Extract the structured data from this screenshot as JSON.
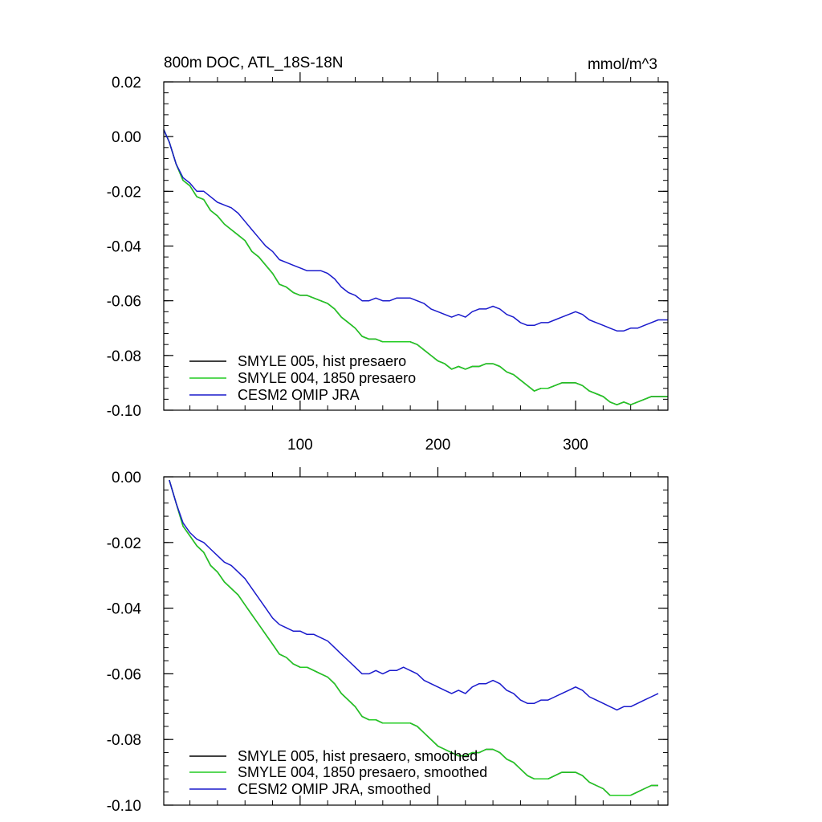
{
  "chart_data": [
    {
      "type": "line",
      "title": "800m DOC, ATL_18S-18N",
      "units": "mmol/m^3",
      "xlim": [
        1,
        367
      ],
      "ylim": [
        -0.1,
        0.02
      ],
      "yticks": [
        0.02,
        0.0,
        -0.02,
        -0.04,
        -0.06,
        -0.08,
        -0.1
      ],
      "ytick_labels": [
        "0.02",
        "0.00",
        "-0.02",
        "-0.04",
        "-0.06",
        "-0.08",
        "-0.10"
      ],
      "xticks": [
        100,
        200,
        300
      ],
      "xtick_labels": [
        "100",
        "200",
        "300"
      ],
      "series": [
        {
          "name": "SMYLE 005, hist presaero",
          "color": "#000000",
          "x": [
            1,
            5,
            10,
            15,
            20,
            25,
            30,
            35,
            40,
            45,
            50,
            55,
            60,
            65,
            70,
            75,
            80,
            85,
            90,
            95,
            100,
            105,
            110,
            115,
            120,
            125,
            130,
            135,
            140,
            145,
            150,
            155,
            160,
            165,
            170,
            175,
            180,
            185,
            190,
            195,
            200,
            205,
            210,
            215,
            220,
            225,
            230,
            235,
            240,
            245,
            250,
            255,
            260,
            265,
            270,
            275,
            280,
            285,
            290,
            295,
            300,
            305,
            310,
            315,
            320,
            325,
            330,
            335,
            340,
            345,
            350,
            355,
            360,
            367
          ],
          "y": [
            0.0025,
            -0.002,
            -0.01,
            -0.016,
            -0.018,
            -0.022,
            -0.023,
            -0.027,
            -0.029,
            -0.032,
            -0.034,
            -0.036,
            -0.038,
            -0.042,
            -0.044,
            -0.047,
            -0.05,
            -0.054,
            -0.055,
            -0.057,
            -0.058,
            -0.058,
            -0.059,
            -0.06,
            -0.061,
            -0.063,
            -0.066,
            -0.068,
            -0.07,
            -0.073,
            -0.074,
            -0.074,
            -0.075,
            -0.075,
            -0.075,
            -0.075,
            -0.075,
            -0.076,
            -0.078,
            -0.08,
            -0.082,
            -0.083,
            -0.085,
            -0.084,
            -0.085,
            -0.084,
            -0.084,
            -0.083,
            -0.083,
            -0.084,
            -0.086,
            -0.087,
            -0.089,
            -0.091,
            -0.093,
            -0.092,
            -0.092,
            -0.091,
            -0.09,
            -0.09,
            -0.09,
            -0.091,
            -0.093,
            -0.094,
            -0.095,
            -0.097,
            -0.098,
            -0.097,
            -0.098,
            -0.097,
            -0.096,
            -0.095,
            -0.095,
            -0.095
          ]
        },
        {
          "name": "SMYLE 004, 1850 presaero",
          "color": "#22cc22",
          "x": [
            1,
            5,
            10,
            15,
            20,
            25,
            30,
            35,
            40,
            45,
            50,
            55,
            60,
            65,
            70,
            75,
            80,
            85,
            90,
            95,
            100,
            105,
            110,
            115,
            120,
            125,
            130,
            135,
            140,
            145,
            150,
            155,
            160,
            165,
            170,
            175,
            180,
            185,
            190,
            195,
            200,
            205,
            210,
            215,
            220,
            225,
            230,
            235,
            240,
            245,
            250,
            255,
            260,
            265,
            270,
            275,
            280,
            285,
            290,
            295,
            300,
            305,
            310,
            315,
            320,
            325,
            330,
            335,
            340,
            345,
            350,
            355,
            360,
            367
          ],
          "y": [
            0.0025,
            -0.002,
            -0.01,
            -0.016,
            -0.018,
            -0.022,
            -0.023,
            -0.027,
            -0.029,
            -0.032,
            -0.034,
            -0.036,
            -0.038,
            -0.042,
            -0.044,
            -0.047,
            -0.05,
            -0.054,
            -0.055,
            -0.057,
            -0.058,
            -0.058,
            -0.059,
            -0.06,
            -0.061,
            -0.063,
            -0.066,
            -0.068,
            -0.07,
            -0.073,
            -0.074,
            -0.074,
            -0.075,
            -0.075,
            -0.075,
            -0.075,
            -0.075,
            -0.076,
            -0.078,
            -0.08,
            -0.082,
            -0.083,
            -0.085,
            -0.084,
            -0.085,
            -0.084,
            -0.084,
            -0.083,
            -0.083,
            -0.084,
            -0.086,
            -0.087,
            -0.089,
            -0.091,
            -0.093,
            -0.092,
            -0.092,
            -0.091,
            -0.09,
            -0.09,
            -0.09,
            -0.091,
            -0.093,
            -0.094,
            -0.095,
            -0.097,
            -0.098,
            -0.097,
            -0.098,
            -0.097,
            -0.096,
            -0.095,
            -0.095,
            -0.095
          ]
        },
        {
          "name": "CESM2 OMIP JRA",
          "color": "#1a1acc",
          "x": [
            1,
            5,
            10,
            15,
            20,
            25,
            30,
            35,
            40,
            45,
            50,
            55,
            60,
            65,
            70,
            75,
            80,
            85,
            90,
            95,
            100,
            105,
            110,
            115,
            120,
            125,
            130,
            135,
            140,
            145,
            150,
            155,
            160,
            165,
            170,
            175,
            180,
            185,
            190,
            195,
            200,
            205,
            210,
            215,
            220,
            225,
            230,
            235,
            240,
            245,
            250,
            255,
            260,
            265,
            270,
            275,
            280,
            285,
            290,
            295,
            300,
            305,
            310,
            315,
            320,
            325,
            330,
            335,
            340,
            345,
            350,
            355,
            360,
            367
          ],
          "y": [
            0.0025,
            -0.002,
            -0.01,
            -0.015,
            -0.017,
            -0.02,
            -0.02,
            -0.022,
            -0.024,
            -0.025,
            -0.026,
            -0.028,
            -0.031,
            -0.034,
            -0.037,
            -0.04,
            -0.042,
            -0.045,
            -0.046,
            -0.047,
            -0.048,
            -0.049,
            -0.049,
            -0.049,
            -0.05,
            -0.052,
            -0.055,
            -0.057,
            -0.058,
            -0.06,
            -0.06,
            -0.059,
            -0.06,
            -0.06,
            -0.059,
            -0.059,
            -0.059,
            -0.06,
            -0.061,
            -0.063,
            -0.064,
            -0.065,
            -0.066,
            -0.065,
            -0.066,
            -0.064,
            -0.063,
            -0.063,
            -0.062,
            -0.063,
            -0.065,
            -0.066,
            -0.068,
            -0.069,
            -0.069,
            -0.068,
            -0.068,
            -0.067,
            -0.066,
            -0.065,
            -0.064,
            -0.065,
            -0.067,
            -0.068,
            -0.069,
            -0.07,
            -0.071,
            -0.071,
            -0.07,
            -0.07,
            -0.069,
            -0.068,
            -0.067,
            -0.067
          ]
        }
      ]
    },
    {
      "type": "line",
      "title": "",
      "xlim": [
        1,
        367
      ],
      "ylim": [
        -0.1,
        0.0
      ],
      "yticks": [
        0.0,
        -0.02,
        -0.04,
        -0.06,
        -0.08,
        -0.1
      ],
      "ytick_labels": [
        "0.00",
        "-0.02",
        "-0.04",
        "-0.06",
        "-0.08",
        "-0.10"
      ],
      "xticks": [
        100,
        200,
        300
      ],
      "series": [
        {
          "name": "SMYLE 005, hist presaero, smoothed",
          "color": "#000000",
          "x": [
            5,
            10,
            15,
            20,
            25,
            30,
            35,
            40,
            45,
            50,
            55,
            60,
            65,
            70,
            75,
            80,
            85,
            90,
            95,
            100,
            105,
            110,
            115,
            120,
            125,
            130,
            135,
            140,
            145,
            150,
            155,
            160,
            165,
            170,
            175,
            180,
            185,
            190,
            195,
            200,
            205,
            210,
            215,
            220,
            225,
            230,
            235,
            240,
            245,
            250,
            255,
            260,
            265,
            270,
            275,
            280,
            285,
            290,
            295,
            300,
            305,
            310,
            315,
            320,
            325,
            330,
            335,
            340,
            345,
            350,
            355,
            360
          ],
          "y": [
            -0.001,
            -0.008,
            -0.015,
            -0.018,
            -0.021,
            -0.023,
            -0.027,
            -0.029,
            -0.032,
            -0.034,
            -0.036,
            -0.039,
            -0.042,
            -0.045,
            -0.048,
            -0.051,
            -0.054,
            -0.055,
            -0.057,
            -0.058,
            -0.058,
            -0.059,
            -0.06,
            -0.061,
            -0.063,
            -0.066,
            -0.068,
            -0.07,
            -0.073,
            -0.074,
            -0.074,
            -0.075,
            -0.075,
            -0.075,
            -0.075,
            -0.075,
            -0.076,
            -0.078,
            -0.08,
            -0.082,
            -0.083,
            -0.084,
            -0.085,
            -0.085,
            -0.084,
            -0.084,
            -0.083,
            -0.083,
            -0.084,
            -0.086,
            -0.087,
            -0.089,
            -0.091,
            -0.092,
            -0.092,
            -0.092,
            -0.091,
            -0.09,
            -0.09,
            -0.09,
            -0.091,
            -0.093,
            -0.094,
            -0.095,
            -0.097,
            -0.097,
            -0.097,
            -0.097,
            -0.096,
            -0.095,
            -0.094,
            -0.094
          ]
        },
        {
          "name": "SMYLE 004, 1850 presaero, smoothed",
          "color": "#22cc22",
          "x": [
            5,
            10,
            15,
            20,
            25,
            30,
            35,
            40,
            45,
            50,
            55,
            60,
            65,
            70,
            75,
            80,
            85,
            90,
            95,
            100,
            105,
            110,
            115,
            120,
            125,
            130,
            135,
            140,
            145,
            150,
            155,
            160,
            165,
            170,
            175,
            180,
            185,
            190,
            195,
            200,
            205,
            210,
            215,
            220,
            225,
            230,
            235,
            240,
            245,
            250,
            255,
            260,
            265,
            270,
            275,
            280,
            285,
            290,
            295,
            300,
            305,
            310,
            315,
            320,
            325,
            330,
            335,
            340,
            345,
            350,
            355,
            360
          ],
          "y": [
            -0.001,
            -0.008,
            -0.015,
            -0.018,
            -0.021,
            -0.023,
            -0.027,
            -0.029,
            -0.032,
            -0.034,
            -0.036,
            -0.039,
            -0.042,
            -0.045,
            -0.048,
            -0.051,
            -0.054,
            -0.055,
            -0.057,
            -0.058,
            -0.058,
            -0.059,
            -0.06,
            -0.061,
            -0.063,
            -0.066,
            -0.068,
            -0.07,
            -0.073,
            -0.074,
            -0.074,
            -0.075,
            -0.075,
            -0.075,
            -0.075,
            -0.075,
            -0.076,
            -0.078,
            -0.08,
            -0.082,
            -0.083,
            -0.084,
            -0.085,
            -0.085,
            -0.084,
            -0.084,
            -0.083,
            -0.083,
            -0.084,
            -0.086,
            -0.087,
            -0.089,
            -0.091,
            -0.092,
            -0.092,
            -0.092,
            -0.091,
            -0.09,
            -0.09,
            -0.09,
            -0.091,
            -0.093,
            -0.094,
            -0.095,
            -0.097,
            -0.097,
            -0.097,
            -0.097,
            -0.096,
            -0.095,
            -0.094,
            -0.094
          ]
        },
        {
          "name": "CESM2 OMIP JRA, smoothed",
          "color": "#1a1acc",
          "x": [
            5,
            10,
            15,
            20,
            25,
            30,
            35,
            40,
            45,
            50,
            55,
            60,
            65,
            70,
            75,
            80,
            85,
            90,
            95,
            100,
            105,
            110,
            115,
            120,
            125,
            130,
            135,
            140,
            145,
            150,
            155,
            160,
            165,
            170,
            175,
            180,
            185,
            190,
            195,
            200,
            205,
            210,
            215,
            220,
            225,
            230,
            235,
            240,
            245,
            250,
            255,
            260,
            265,
            270,
            275,
            280,
            285,
            290,
            295,
            300,
            305,
            310,
            315,
            320,
            325,
            330,
            335,
            340,
            345,
            350,
            355,
            360
          ],
          "y": [
            -0.001,
            -0.008,
            -0.014,
            -0.017,
            -0.019,
            -0.02,
            -0.022,
            -0.024,
            -0.026,
            -0.027,
            -0.029,
            -0.031,
            -0.034,
            -0.037,
            -0.04,
            -0.043,
            -0.045,
            -0.046,
            -0.047,
            -0.047,
            -0.048,
            -0.048,
            -0.049,
            -0.05,
            -0.052,
            -0.054,
            -0.056,
            -0.058,
            -0.06,
            -0.06,
            -0.059,
            -0.06,
            -0.059,
            -0.059,
            -0.058,
            -0.059,
            -0.06,
            -0.062,
            -0.063,
            -0.064,
            -0.065,
            -0.066,
            -0.065,
            -0.066,
            -0.064,
            -0.063,
            -0.063,
            -0.062,
            -0.063,
            -0.065,
            -0.066,
            -0.068,
            -0.069,
            -0.069,
            -0.068,
            -0.068,
            -0.067,
            -0.066,
            -0.065,
            -0.064,
            -0.065,
            -0.067,
            -0.068,
            -0.069,
            -0.07,
            -0.071,
            -0.07,
            -0.07,
            -0.069,
            -0.068,
            -0.067,
            -0.066
          ]
        }
      ]
    }
  ]
}
